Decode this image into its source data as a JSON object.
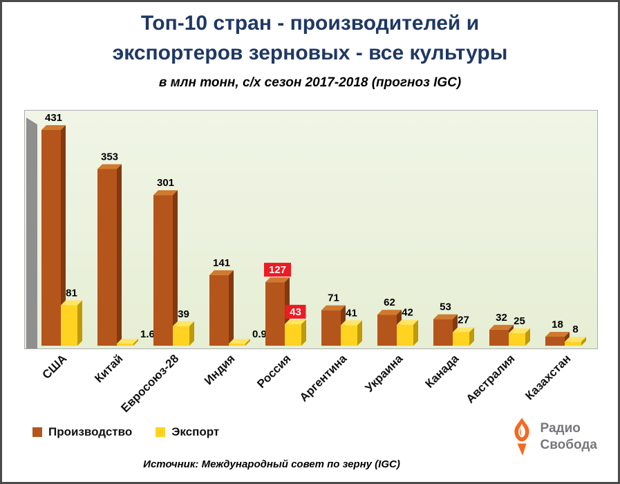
{
  "title": {
    "line1": "Топ-10 стран - производителей и",
    "line2": "экспортеров зерновых - все культуры",
    "subtitle": "в млн тонн, с/х сезон 2017-2018 (прогноз IGC)"
  },
  "chart_data": {
    "type": "bar",
    "title": "Топ-10 стран - производителей и экспортеров зерновых - все культуры",
    "subtitle": "в млн тонн, с/х сезон 2017-2018 (прогноз IGC)",
    "categories": [
      "США",
      "Китай",
      "Евросоюз-28",
      "Индия",
      "Россия",
      "Аргентина",
      "Украина",
      "Канада",
      "Австралия",
      "Казахстан"
    ],
    "series": [
      {
        "name": "Производство",
        "color": "#b4551b",
        "values": [
          431,
          353,
          301,
          141,
          127,
          71,
          62,
          53,
          32,
          18
        ]
      },
      {
        "name": "Экспорт",
        "color": "#ffd320",
        "values": [
          81,
          1.6,
          39,
          0.9,
          43,
          41,
          42,
          27,
          25,
          8
        ]
      }
    ],
    "xlabel": "",
    "ylabel": "",
    "ylim": [
      0,
      431
    ],
    "grid": false,
    "legend_position": "bottom-left",
    "value_labels": true,
    "highlight_category": "Россия",
    "highlight_color": "#ed1b24",
    "plot_background": "#eaf1dd"
  },
  "source": "Источник: Международный совет по зерну (IGC)",
  "logo": {
    "line1": "Радио",
    "line2": "Свобода",
    "accent_color": "#f26a21",
    "text_color": "#76777b"
  }
}
